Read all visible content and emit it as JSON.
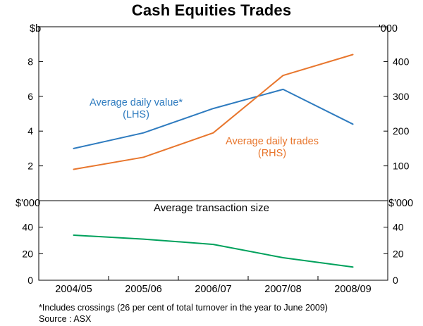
{
  "title": "Cash Equities Trades",
  "footnote": "*Includes crossings (26 per cent of total turnover in the year to June 2009)",
  "source": "Source : ASX",
  "colors": {
    "value_line": "#2e7bbf",
    "trades_line": "#e8762d",
    "size_line": "#00a15c",
    "frame": "#000000"
  },
  "chart_data": [
    {
      "type": "line",
      "panel": "top",
      "categories": [
        "2004/05",
        "2005/06",
        "2006/07",
        "2007/08",
        "2008/09"
      ],
      "left_axis": {
        "unit": "$b",
        "range": [
          0,
          10
        ],
        "ticks": [
          2,
          4,
          6,
          8
        ]
      },
      "right_axis": {
        "unit": "'000",
        "range": [
          0,
          500
        ],
        "ticks": [
          100,
          200,
          300,
          400
        ]
      },
      "grid": false,
      "series": [
        {
          "name": "Average daily value* (LHS)",
          "label_line1": "Average daily value*",
          "label_line2": "(LHS)",
          "axis": "left",
          "color": "#2e7bbf",
          "values": [
            3.0,
            3.9,
            5.3,
            6.4,
            4.4
          ]
        },
        {
          "name": "Average daily trades (RHS)",
          "label_line1": "Average daily trades",
          "label_line2": "(RHS)",
          "axis": "right",
          "color": "#e8762d",
          "values": [
            90,
            125,
            195,
            360,
            420
          ]
        }
      ]
    },
    {
      "type": "line",
      "panel": "bottom",
      "title": "Average transaction size",
      "categories": [
        "2004/05",
        "2005/06",
        "2006/07",
        "2007/08",
        "2008/09"
      ],
      "left_axis": {
        "unit": "$'000",
        "range": [
          0,
          60
        ],
        "ticks": [
          0,
          20,
          40
        ]
      },
      "right_axis": {
        "unit": "$'000",
        "range": [
          0,
          60
        ],
        "ticks": [
          0,
          20,
          40
        ]
      },
      "grid": false,
      "series": [
        {
          "name": "Average transaction size",
          "axis": "left",
          "color": "#00a15c",
          "values": [
            34,
            31,
            27,
            17,
            10
          ]
        }
      ]
    }
  ]
}
